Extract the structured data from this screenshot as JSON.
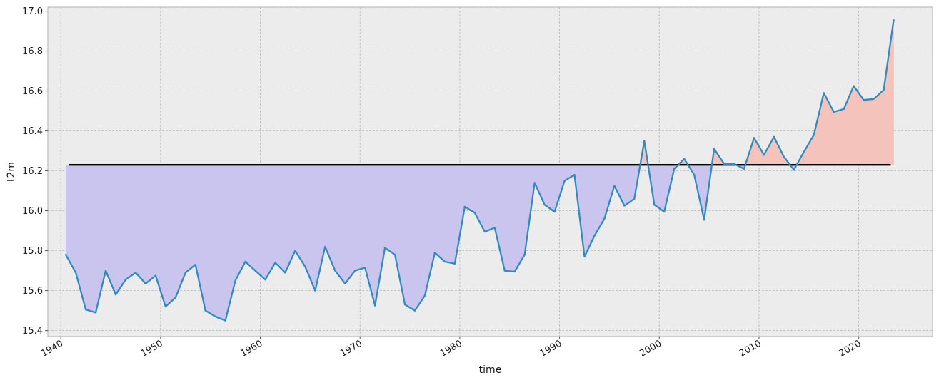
{
  "chart_data": {
    "type": "line",
    "xlabel": "time",
    "ylabel": "t2m",
    "xlim": [
      1938.7,
      2027.4
    ],
    "ylim": [
      15.37,
      17.02
    ],
    "grid": true,
    "baseline": 16.23,
    "x_ticks": [
      1940,
      1950,
      1960,
      1970,
      1980,
      1990,
      2000,
      2010,
      2020
    ],
    "y_ticks": [
      15.4,
      15.6,
      15.8,
      16.0,
      16.2,
      16.4,
      16.6,
      16.8,
      17.0
    ],
    "y_tick_labels": [
      "15.4",
      "15.6",
      "15.8",
      "16.0",
      "16.2",
      "16.4",
      "16.6",
      "16.8",
      "17.0"
    ],
    "colors": {
      "line": "#348abd",
      "baseline": "#000000",
      "below_fill": "#cac5ee",
      "above_fill": "#f3c3bc",
      "plot_bg": "#ececec",
      "grid": "#b7b7b7"
    },
    "series": [
      {
        "x": [
          1940.5,
          1941.5,
          1942.5,
          1943.5,
          1944.5,
          1945.5,
          1946.5,
          1947.5,
          1948.5,
          1949.5,
          1950.5,
          1951.5,
          1952.5,
          1953.5,
          1954.5,
          1955.5,
          1956.5,
          1957.5,
          1958.5,
          1959.5,
          1960.5,
          1961.5,
          1962.5,
          1963.5,
          1964.5,
          1965.5,
          1966.5,
          1967.5,
          1968.5,
          1969.5,
          1970.5,
          1971.5,
          1972.5,
          1973.5,
          1974.5,
          1975.5,
          1976.5,
          1977.5,
          1978.5,
          1979.5,
          1980.5,
          1981.5,
          1982.5,
          1983.5,
          1984.5,
          1985.5,
          1986.5,
          1987.5,
          1988.5,
          1989.5,
          1990.5,
          1991.5,
          1992.5,
          1993.5,
          1994.5,
          1995.5,
          1996.5,
          1997.5,
          1998.5,
          1999.5,
          2000.5,
          2001.5,
          2002.5,
          2003.5,
          2004.5,
          2005.5,
          2006.5,
          2007.5,
          2008.5,
          2009.5,
          2010.5,
          2011.5,
          2012.5,
          2013.5,
          2014.5,
          2015.5,
          2016.5,
          2017.5,
          2018.5,
          2019.5,
          2020.5,
          2021.5,
          2022.5,
          2023.5
        ],
        "y": [
          15.78,
          15.69,
          15.505,
          15.49,
          15.7,
          15.58,
          15.655,
          15.69,
          15.635,
          15.675,
          15.52,
          15.565,
          15.69,
          15.73,
          15.5,
          15.47,
          15.45,
          15.65,
          15.745,
          15.7,
          15.655,
          15.74,
          15.69,
          15.8,
          15.72,
          15.6,
          15.82,
          15.7,
          15.635,
          15.7,
          15.715,
          15.525,
          15.815,
          15.78,
          15.53,
          15.5,
          15.575,
          15.79,
          15.745,
          15.735,
          16.02,
          15.99,
          15.895,
          15.915,
          15.7,
          15.695,
          15.78,
          16.14,
          16.03,
          15.995,
          16.15,
          16.18,
          15.77,
          15.875,
          15.96,
          16.125,
          16.025,
          16.06,
          16.35,
          16.03,
          15.995,
          16.21,
          16.26,
          16.18,
          15.955,
          16.31,
          16.235,
          16.235,
          16.21,
          16.365,
          16.28,
          16.37,
          16.27,
          16.205,
          16.295,
          16.38,
          16.59,
          16.495,
          16.51,
          16.625,
          16.555,
          16.56,
          16.605,
          16.955
        ]
      }
    ]
  }
}
